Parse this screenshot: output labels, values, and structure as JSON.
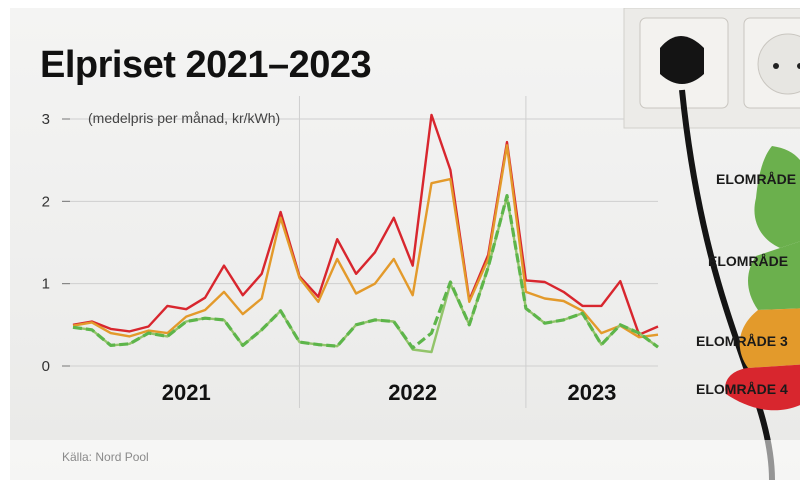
{
  "title": "Elpriset 2021–2023",
  "source": "Källa: Nord Pool",
  "colors": {
    "se4": "#d8262e",
    "se3": "#e39a2b",
    "se1": "#5db54a",
    "se2": "#92c46a",
    "map_green": "#6bb04d",
    "map_orange": "#e39a2b",
    "map_red": "#d8262e"
  },
  "map": {
    "region_labels": [
      "ELOMRÅDE",
      "ELOMRÅDE",
      "ELOMRÅDE 3",
      "ELOMRÅDE 4"
    ]
  },
  "chart_data": {
    "type": "line",
    "title": "Elpriset 2021–2023",
    "unit_label": "(medelpris per månad, kr/kWh)",
    "ylim": [
      0,
      3
    ],
    "yticks": [
      "0",
      "1",
      "2",
      "3"
    ],
    "x_period_labels": [
      "2021",
      "2022",
      "2023"
    ],
    "grid": true,
    "x": [
      "2021-01",
      "2021-02",
      "2021-03",
      "2021-04",
      "2021-05",
      "2021-06",
      "2021-07",
      "2021-08",
      "2021-09",
      "2021-10",
      "2021-11",
      "2021-12",
      "2022-01",
      "2022-02",
      "2022-03",
      "2022-04",
      "2022-05",
      "2022-06",
      "2022-07",
      "2022-08",
      "2022-09",
      "2022-10",
      "2022-11",
      "2022-12",
      "2023-01",
      "2023-02",
      "2023-03",
      "2023-04",
      "2023-05",
      "2023-06",
      "2023-07",
      "2023-08"
    ],
    "series": [
      {
        "color": "#d8262e",
        "dash": false,
        "values": [
          0.5,
          0.54,
          0.45,
          0.42,
          0.48,
          0.73,
          0.69,
          0.83,
          1.22,
          0.86,
          1.12,
          1.87,
          1.09,
          0.84,
          1.54,
          1.12,
          1.38,
          1.8,
          1.22,
          3.05,
          2.38,
          0.8,
          1.35,
          2.72,
          1.04,
          1.02,
          0.9,
          0.73,
          0.73,
          1.03,
          0.38,
          0.48
        ]
      },
      {
        "color": "#e39a2b",
        "dash": false,
        "values": [
          0.49,
          0.53,
          0.4,
          0.36,
          0.43,
          0.4,
          0.6,
          0.68,
          0.9,
          0.63,
          0.82,
          1.8,
          1.07,
          0.78,
          1.3,
          0.88,
          1.0,
          1.3,
          0.86,
          2.22,
          2.27,
          0.78,
          1.3,
          2.68,
          0.9,
          0.82,
          0.79,
          0.67,
          0.4,
          0.49,
          0.35,
          0.38
        ]
      },
      {
        "color": "#92c46a",
        "dash": false,
        "values": [
          0.47,
          0.44,
          0.25,
          0.27,
          0.4,
          0.36,
          0.54,
          0.58,
          0.56,
          0.25,
          0.44,
          0.67,
          0.29,
          0.26,
          0.24,
          0.5,
          0.56,
          0.54,
          0.2,
          0.17,
          1.0,
          0.5,
          1.2,
          2.05,
          0.7,
          0.52,
          0.56,
          0.64,
          0.26,
          0.5,
          0.4,
          0.23
        ]
      },
      {
        "color": "#5db54a",
        "dash": true,
        "values": [
          0.47,
          0.44,
          0.25,
          0.27,
          0.4,
          0.36,
          0.54,
          0.58,
          0.56,
          0.25,
          0.44,
          0.67,
          0.29,
          0.26,
          0.24,
          0.5,
          0.56,
          0.54,
          0.22,
          0.4,
          1.02,
          0.5,
          1.2,
          2.07,
          0.7,
          0.52,
          0.56,
          0.64,
          0.26,
          0.5,
          0.4,
          0.23
        ]
      }
    ]
  }
}
